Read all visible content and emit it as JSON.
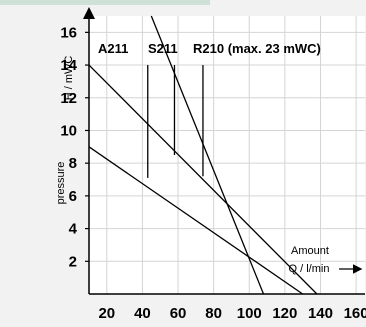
{
  "chart_data": {
    "type": "line",
    "ylabel_unit": "H / mWC",
    "ylabel_name": "pressure",
    "xlabel_name": "Amount",
    "xlabel_unit": "Q / l/min",
    "xlim": [
      10,
      165
    ],
    "ylim": [
      0,
      17
    ],
    "xticks": [
      20,
      40,
      60,
      80,
      100,
      120,
      140,
      160
    ],
    "yticks": [
      2,
      4,
      6,
      8,
      10,
      12,
      14,
      16
    ],
    "grid": true,
    "series": [
      {
        "name": "A211",
        "x": [
          10,
          130
        ],
        "y": [
          9.0,
          0
        ]
      },
      {
        "name": "S211",
        "x": [
          10,
          138
        ],
        "y": [
          14.0,
          0
        ]
      },
      {
        "name": "R210 (max. 23  mWC)",
        "x": [
          45,
          108
        ],
        "y": [
          17.0,
          0
        ]
      }
    ],
    "label_markers": [
      {
        "series": "A211",
        "x": 43,
        "y_top": 14.0,
        "y_bottom": 7.1
      },
      {
        "series": "S211",
        "x": 58,
        "y_top": 14.0,
        "y_bottom": 8.5
      },
      {
        "series": "R210 (max. 23  mWC)",
        "x": 74,
        "y_top": 14.0,
        "y_bottom": 7.2
      }
    ]
  }
}
